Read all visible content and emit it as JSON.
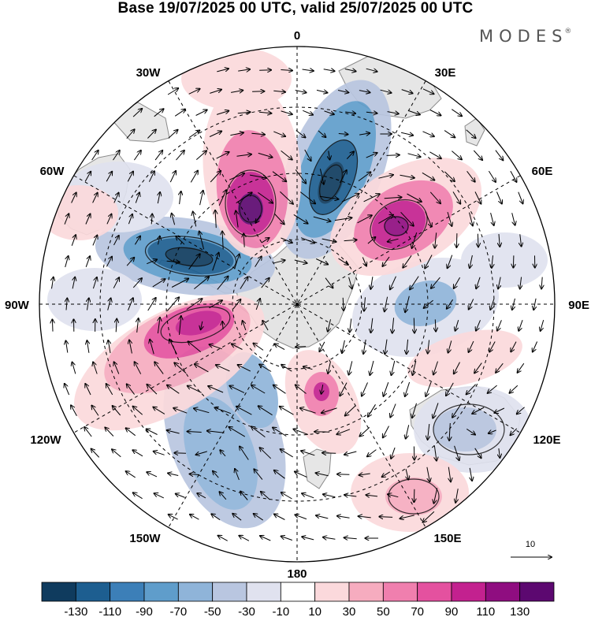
{
  "title": "Base 19/07/2025 00 UTC, valid 25/07/2025 00 UTC",
  "brand": "MODES",
  "brand_mark": "®",
  "longitude_labels": {
    "top": "0",
    "bottom": "180",
    "left": "90W",
    "right": "90E",
    "upper_left_30": "30W",
    "upper_right_30": "30E",
    "upper_left_60": "60W",
    "upper_right_60": "60E",
    "lower_left_120": "120W",
    "lower_right_120": "120E",
    "lower_left_150": "150W",
    "lower_right_150": "150E"
  },
  "reference_vector": {
    "label": "10"
  },
  "colorbar": {
    "colors": [
      "#0f3b5e",
      "#1d5e90",
      "#3c7fb8",
      "#5f9dcb",
      "#8fb4d9",
      "#b9c6e0",
      "#e0e2ef",
      "#ffffff",
      "#fbd9dc",
      "#f6acbf",
      "#f07fae",
      "#e4519f",
      "#c3218f",
      "#8f0d80",
      "#5c0870"
    ],
    "tick_labels": [
      "-130",
      "-110",
      "-90",
      "-70",
      "-50",
      "-30",
      "-10",
      "10",
      "30",
      "50",
      "70",
      "90",
      "110",
      "130"
    ]
  },
  "map_style": {
    "land_fill": "#e7e7e7",
    "coast_color": "#8a8a8a",
    "grid_color": "#000000"
  }
}
